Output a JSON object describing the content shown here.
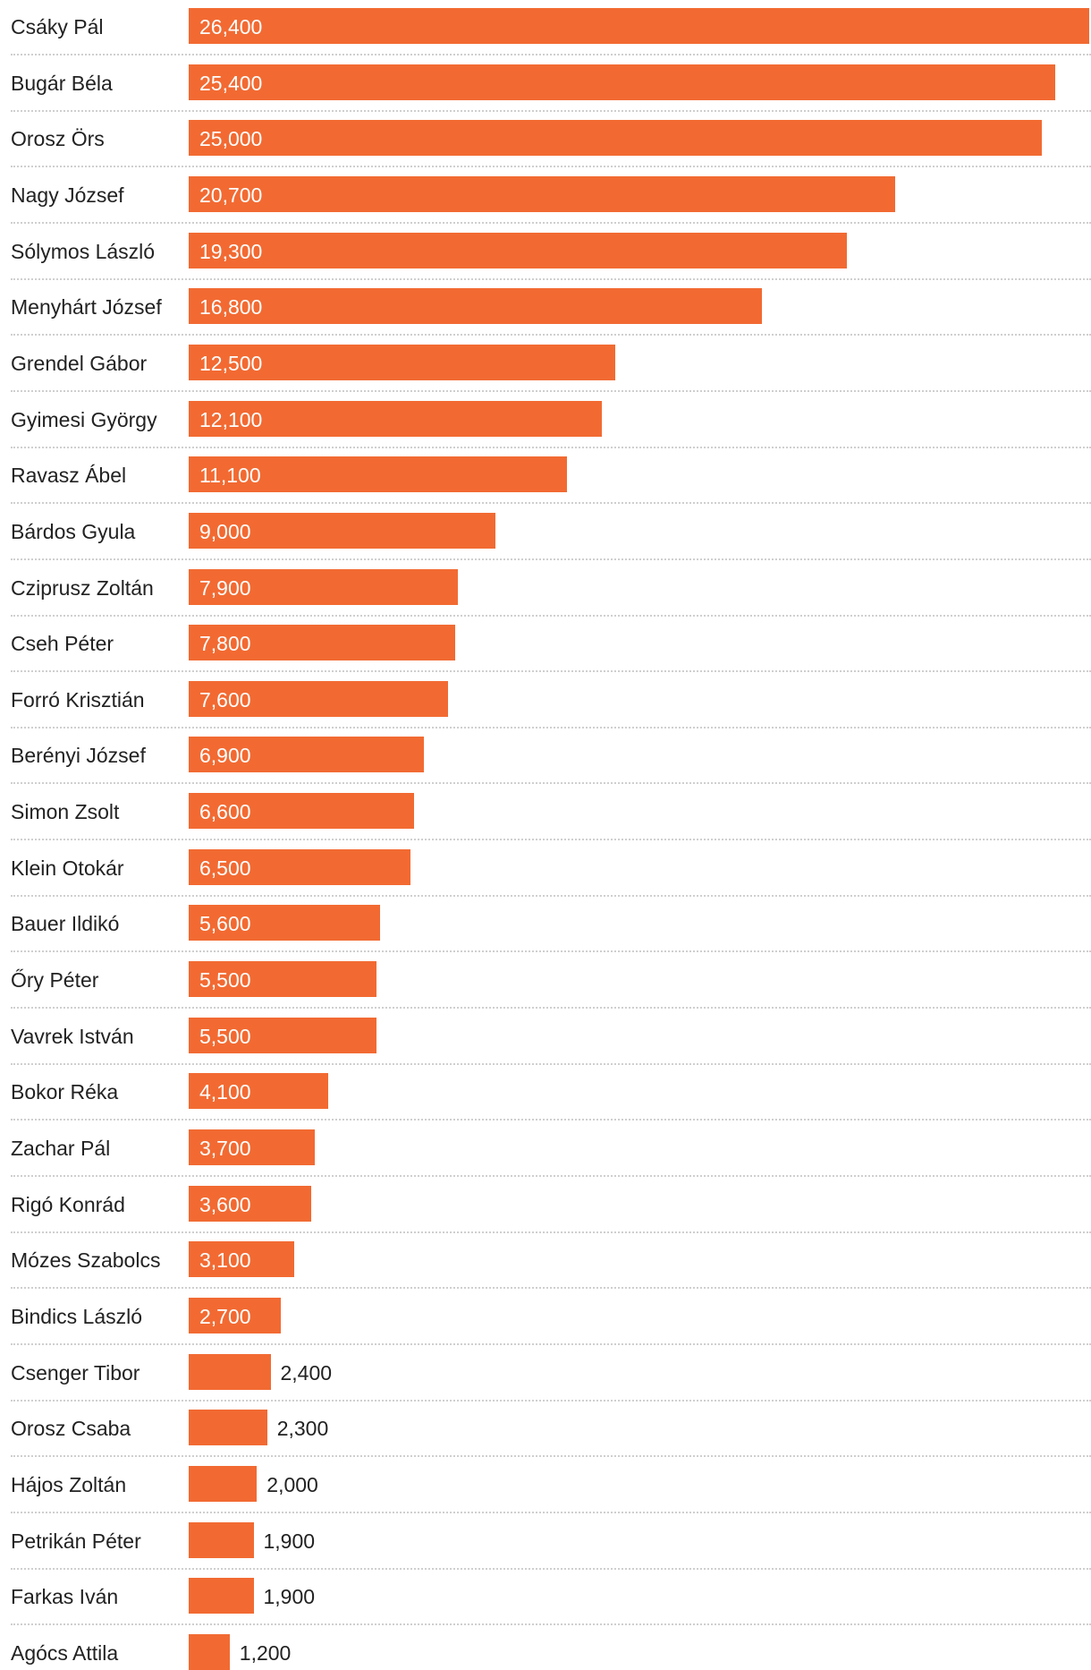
{
  "chart_data": {
    "type": "bar",
    "orientation": "horizontal",
    "color": "#f26a32",
    "categories": [
      "Csáky Pál",
      "Bugár Béla",
      "Orosz Örs",
      "Nagy József",
      "Sólymos László",
      "Menyhárt József",
      "Grendel Gábor",
      "Gyimesi György",
      "Ravasz Ábel",
      "Bárdos Gyula",
      "Cziprusz Zoltán",
      "Cseh Péter",
      "Forró Krisztián",
      "Berényi József",
      "Simon Zsolt",
      "Klein Otokár",
      "Bauer Ildikó",
      "Őry Péter",
      "Vavrek István",
      "Bokor Réka",
      "Zachar Pál",
      "Rigó Konrád",
      "Mózes Szabolcs",
      "Bindics László",
      "Csenger Tibor",
      "Orosz Csaba",
      "Hájos Zoltán",
      "Petrikán Péter",
      "Farkas Iván",
      "Agócs Attila"
    ],
    "values": [
      26400,
      25400,
      25000,
      20700,
      19300,
      16800,
      12500,
      12100,
      11100,
      9000,
      7900,
      7800,
      7600,
      6900,
      6600,
      6500,
      5600,
      5500,
      5500,
      4100,
      3700,
      3600,
      3100,
      2700,
      2400,
      2300,
      2000,
      1900,
      1900,
      1200
    ],
    "value_labels": [
      "26,400",
      "25,400",
      "25,000",
      "20,700",
      "19,300",
      "16,800",
      "12,500",
      "12,100",
      "11,100",
      "9,000",
      "7,900",
      "7,800",
      "7,600",
      "6,900",
      "6,600",
      "6,500",
      "5,600",
      "5,500",
      "5,500",
      "4,100",
      "3,700",
      "3,600",
      "3,100",
      "2,700",
      "2,400",
      "2,300",
      "2,000",
      "1,900",
      "1,900",
      "1,200"
    ],
    "title": "",
    "xlabel": "",
    "ylabel": "",
    "xlim": [
      0,
      26400
    ],
    "grid": false,
    "legend": "none"
  }
}
